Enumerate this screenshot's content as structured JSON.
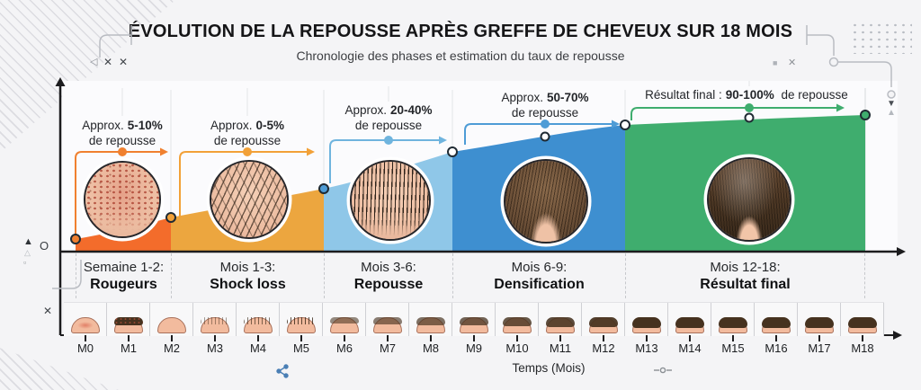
{
  "header": {
    "title": "ÉVOLUTION DE LA REPOUSSE APRÈS GREFFE DE CHEVEUX SUR 18 MOIS",
    "subtitle": "Chronologie des phases et estimation du taux de repousse"
  },
  "chart_data": {
    "type": "area",
    "title": "ÉVOLUTION DE LA REPOUSSE APRÈS GREFFE DE CHEVEUX SUR 18 MOIS",
    "subtitle": "Chronologie des phases et estimation du taux de repousse",
    "xlabel": "Temps (Mois)",
    "origin_label": "O",
    "x_ticks": [
      "M0",
      "M1",
      "M2",
      "M3",
      "M4",
      "M5",
      "M6",
      "M7",
      "M8",
      "M9",
      "M10",
      "M11",
      "M12",
      "M13",
      "M14",
      "M15",
      "M16",
      "M17",
      "M18"
    ],
    "legend": "none",
    "grid": "off",
    "phases": [
      {
        "period": "Semaine 1-2:",
        "name": "Rougeurs",
        "range_pct": [
          5,
          10
        ],
        "annotation": {
          "prefix": "Approx.",
          "value": "5-10%",
          "suffix": "de repousse"
        },
        "color": "#F36C2B",
        "accent": "#F0802F"
      },
      {
        "period": "Mois 1-3:",
        "name": "Shock loss",
        "range_pct": [
          0,
          5
        ],
        "annotation": {
          "prefix": "Approx.",
          "value": "0-5%",
          "suffix": "de repousse"
        },
        "color": "#ECA63F",
        "accent": "#F2A138"
      },
      {
        "period": "Mois 3-6:",
        "name": "Repousse",
        "range_pct": [
          20,
          40
        ],
        "annotation": {
          "prefix": "Approx.",
          "value": "20-40%",
          "suffix": "de repousse"
        },
        "color": "#8FC7E8",
        "accent": "#6FB4DE"
      },
      {
        "period": "Mois 6-9:",
        "name": "Densification",
        "range_pct": [
          50,
          70
        ],
        "annotation": {
          "prefix": "Approx.",
          "value": "50-70%",
          "suffix": "de repousse"
        },
        "color": "#3E8FD0",
        "accent": "#4E9CD6"
      },
      {
        "period": "Mois 12-18:",
        "name": "Résultat final",
        "range_pct": [
          90,
          100
        ],
        "annotation": {
          "prefix": "Résultat final :",
          "value": "90-100%",
          "suffix": "de repousse"
        },
        "color": "#3FAD6E",
        "accent": "#3FAD6E"
      }
    ]
  },
  "decorations": {
    "glyphs": [
      "◁",
      "✕",
      "✕",
      "■",
      "✕",
      "▼",
      "▲",
      "▲",
      "△",
      "▫",
      "✕"
    ]
  }
}
